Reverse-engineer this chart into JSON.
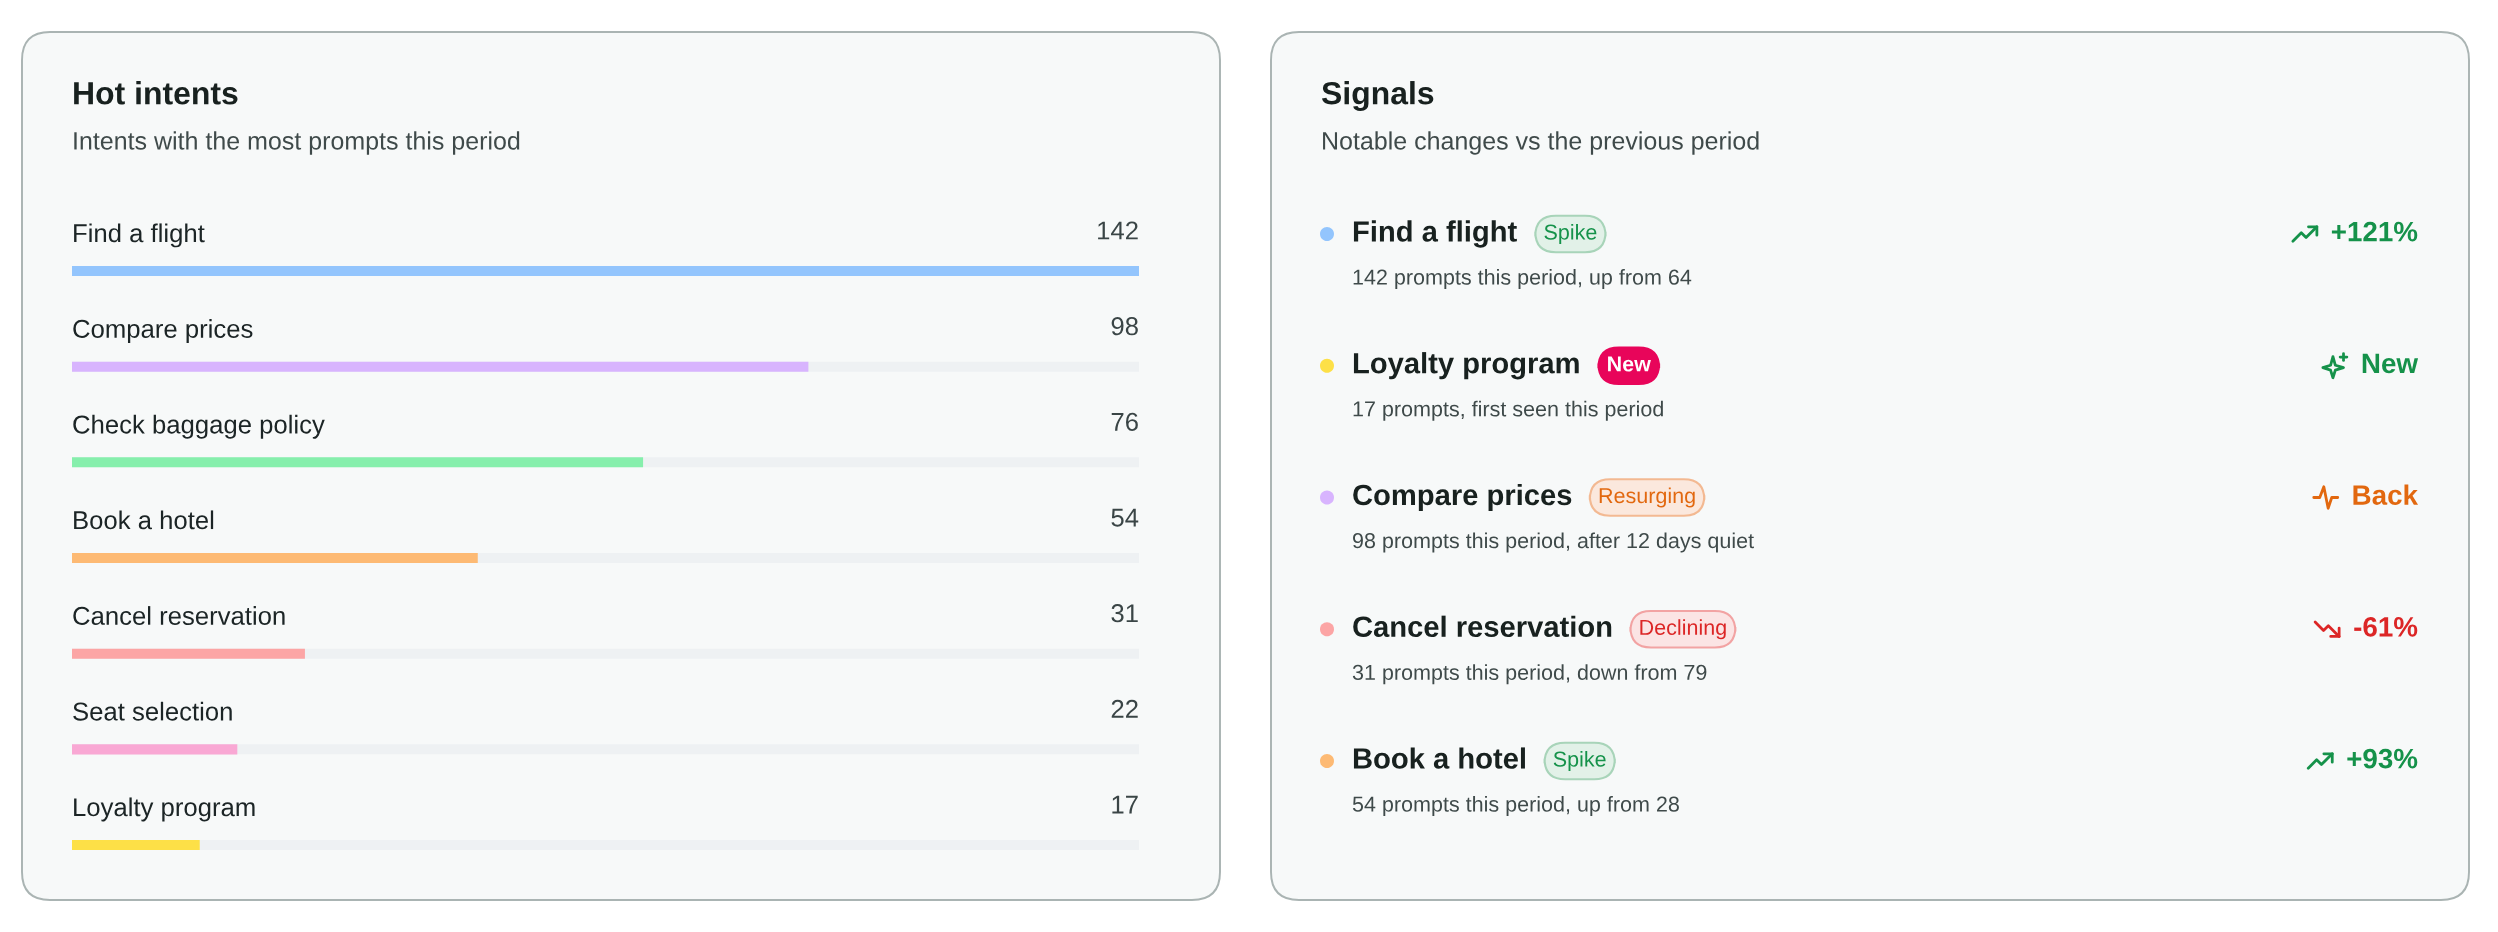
{
  "chart_data": [
    {
      "type": "bar",
      "orientation": "horizontal",
      "title": "Hot intents",
      "subtitle": "Intents with the most prompts this period",
      "categories": [
        "Find a flight",
        "Compare prices",
        "Check baggage policy",
        "Book a hotel",
        "Cancel reservation",
        "Seat selection",
        "Loyalty program"
      ],
      "values": [
        142,
        98,
        76,
        54,
        31,
        22,
        17
      ],
      "colors": [
        "#93c5fd",
        "#d8b4fe",
        "#86efac",
        "#fdba74",
        "#fca5a5",
        "#f9a8d4",
        "#fde047"
      ],
      "xlim": [
        0,
        142
      ],
      "data_labels": true,
      "tick_labels": "y"
    },
    {
      "type": "other",
      "title": "Signals",
      "subtitle": "Notable changes vs the previous period",
      "categories": [
        "Find a flight",
        "Loyalty program",
        "Compare prices",
        "Cancel reservation",
        "Book a hotel"
      ],
      "colors": [
        "#93c5fd",
        "#fde047",
        "#d8b4fe",
        "#fca5a5",
        "#fdba74"
      ],
      "annotations": [
        "Spike",
        "142 prompts this period, up from 64",
        "+121%",
        "New",
        "17 prompts, first seen this period",
        "New",
        "Resurging",
        "98 prompts this period, after 12 days quiet",
        "Back",
        "Declining",
        "31 prompts this period, down from 79",
        "-61%",
        "Spike",
        "54 prompts this period, up from 28",
        "+93%"
      ]
    }
  ]
}
